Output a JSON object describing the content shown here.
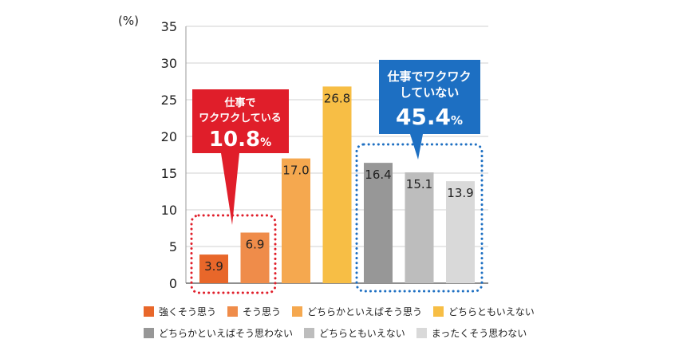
{
  "chart_data": {
    "type": "bar",
    "unit_label": "(%)",
    "ylim": [
      0,
      35
    ],
    "yticks": [
      0,
      5,
      10,
      15,
      20,
      25,
      30,
      35
    ],
    "grid": true,
    "categories": [
      "強くそう思う",
      "そう思う",
      "どちらかといえばそう思う",
      "どちらともいえない",
      "どちらかといえばそう思わない",
      "どちらともいえない",
      "まったくそう思わない"
    ],
    "values": [
      3.9,
      6.9,
      17.0,
      26.8,
      16.4,
      15.1,
      13.9
    ],
    "value_labels": [
      "3.9",
      "6.9",
      "17.0",
      "26.8",
      "16.4",
      "15.1",
      "13.9"
    ],
    "colors": [
      "#e8672a",
      "#ef8c4a",
      "#f5a84f",
      "#f7be45",
      "#979797",
      "#bdbdbd",
      "#d9d9d9"
    ],
    "legend_position": "bottom",
    "callouts": [
      {
        "lines": [
          "仕事で",
          "ワクワクしている"
        ],
        "value": "10.8",
        "unit": "%",
        "color": "#e01e2a"
      },
      {
        "lines": [
          "仕事でワクワク",
          "していない"
        ],
        "value": "45.4",
        "unit": "%",
        "color": "#1d6fc2"
      }
    ]
  }
}
